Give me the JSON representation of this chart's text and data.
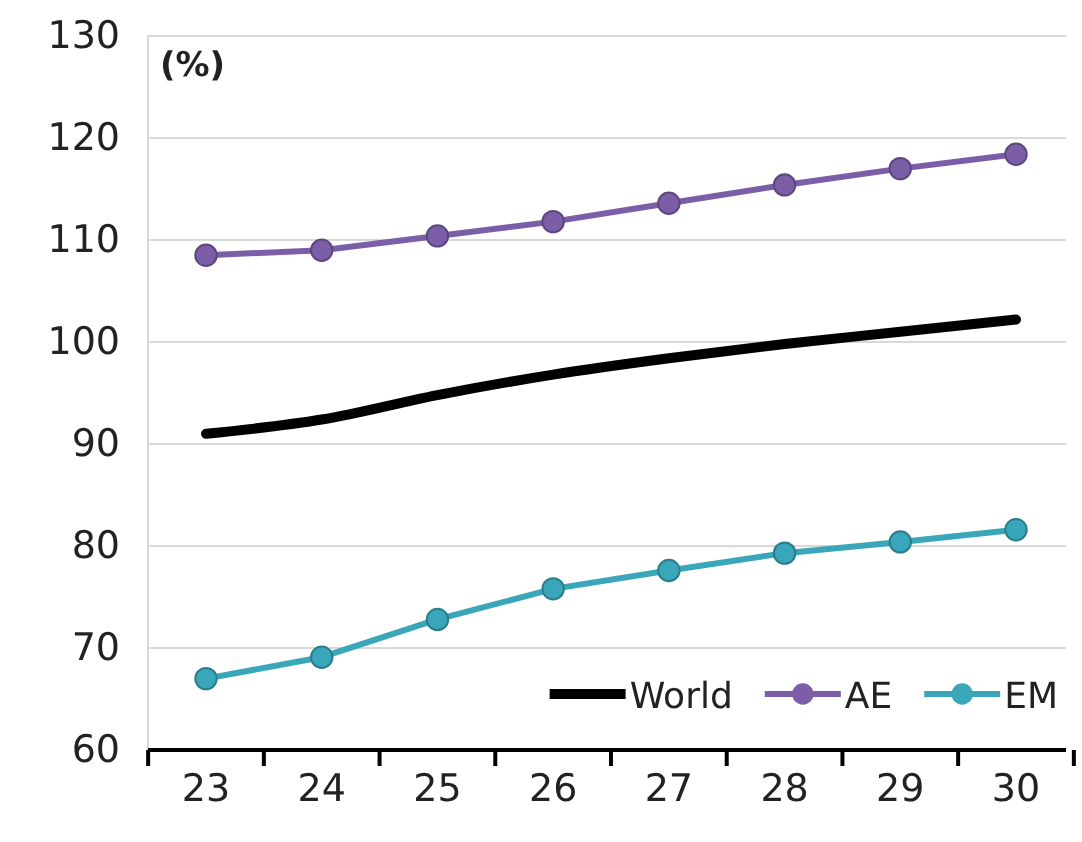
{
  "chart_data": {
    "type": "line",
    "ylabel": "(%)",
    "categories": [
      "23",
      "24",
      "25",
      "26",
      "27",
      "28",
      "29",
      "30"
    ],
    "ylim": [
      60,
      130
    ],
    "yticks": [
      60,
      70,
      80,
      90,
      100,
      110,
      120,
      130
    ],
    "grid": "y",
    "legend": "bottom right",
    "series": [
      {
        "name": "World",
        "color": "#000000",
        "marker": "none",
        "values": [
          91,
          92.4,
          94.8,
          96.8,
          98.4,
          99.8,
          101,
          102.2
        ]
      },
      {
        "name": "AE",
        "color": "#7b5ea7",
        "marker": "circle",
        "values": [
          108.5,
          109,
          110.4,
          111.8,
          113.6,
          115.4,
          117,
          118.4
        ]
      },
      {
        "name": "EM",
        "color": "#3aa6b9",
        "marker": "circle",
        "values": [
          67,
          69.1,
          72.8,
          75.8,
          77.6,
          79.3,
          80.4,
          81.6
        ]
      }
    ]
  }
}
